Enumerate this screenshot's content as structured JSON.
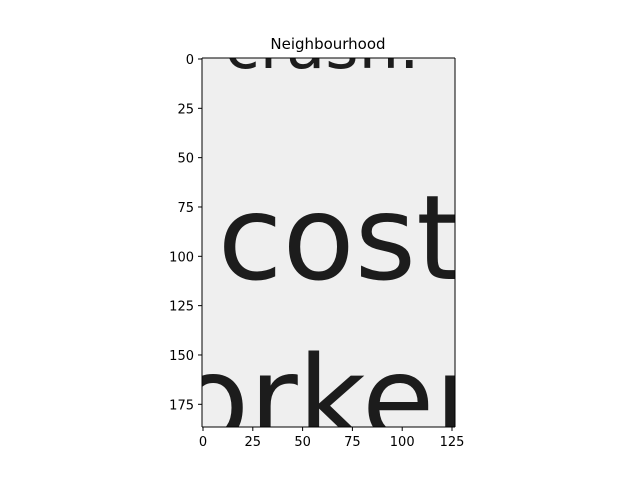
{
  "chart_data": {
    "type": "image",
    "title": "Neighbourhood",
    "xlim": [
      -0.5,
      126.5
    ],
    "ylim": [
      186.5,
      -0.5
    ],
    "xticks": [
      0,
      25,
      50,
      75,
      100,
      125
    ],
    "yticks": [
      0,
      25,
      50,
      75,
      100,
      125,
      150,
      175
    ],
    "colormap": "gray",
    "image_text": {
      "top": "crash.",
      "middle": "cost",
      "bottom": "orker"
    },
    "colors": {
      "paper": "#efefef",
      "ink": "#1c1c1c",
      "axis": "#000000"
    }
  }
}
